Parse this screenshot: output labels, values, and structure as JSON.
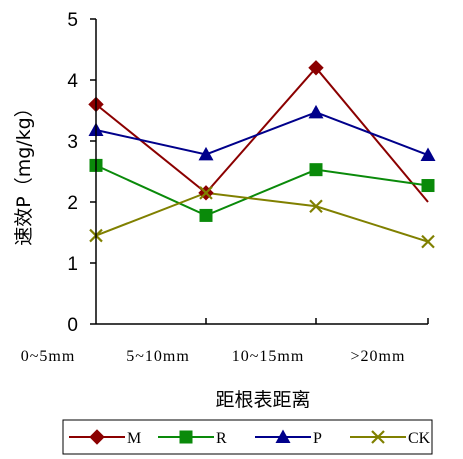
{
  "chart_data": {
    "type": "line",
    "title": "",
    "xlabel": "距根表距离",
    "ylabel": "速效P（mg/kg）",
    "categories": [
      "0~5mm",
      "5~10mm",
      "10~15mm",
      ">20mm"
    ],
    "ylim": [
      0,
      5
    ],
    "yticks": [
      "0",
      "1",
      "2",
      "3",
      "4",
      "5"
    ],
    "grid": false,
    "legend_position": "bottom",
    "series": [
      {
        "name": "M",
        "values": [
          3.6,
          2.15,
          4.2,
          2.0
        ],
        "color": "#8B0000",
        "marker": "diamond"
      },
      {
        "name": "R",
        "values": [
          2.6,
          1.78,
          2.53,
          2.27
        ],
        "color": "#0a8a0a",
        "marker": "square"
      },
      {
        "name": "P",
        "values": [
          3.18,
          2.78,
          3.47,
          2.77
        ],
        "color": "#00008B",
        "marker": "triangle"
      },
      {
        "name": "CK",
        "values": [
          1.45,
          2.15,
          1.93,
          1.35
        ],
        "color": "#808000",
        "marker": "x"
      }
    ]
  }
}
